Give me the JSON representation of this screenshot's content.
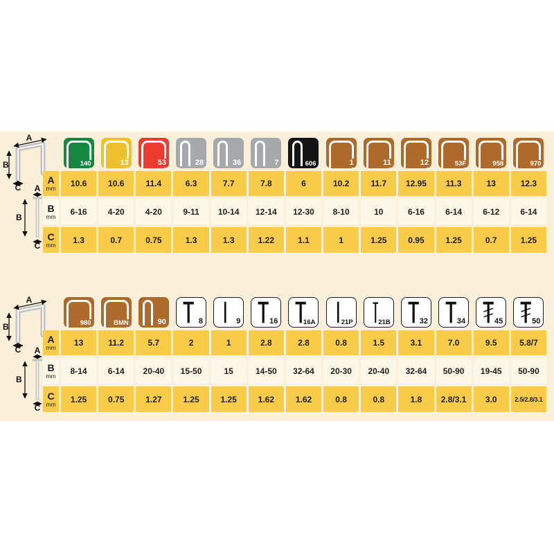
{
  "colors": {
    "band": "#faf0d9",
    "row_yellow": "#f8cc49",
    "row_cream": "#fdf7e7",
    "green": "#16873f",
    "gold": "#eec02d",
    "red": "#ee3b30",
    "gray": "#a6a9ab",
    "black": "#141414",
    "brown": "#ae6a2b",
    "text": "#1d1d1b"
  },
  "diagram_labels": {
    "width": "A",
    "length": "B",
    "thickness": "C"
  },
  "row_headers": [
    {
      "letter": "A",
      "unit": "mm"
    },
    {
      "letter": "B",
      "unit": "mm"
    },
    {
      "letter": "C",
      "unit": "mm"
    }
  ],
  "chart_data": [
    {
      "type": "table",
      "title": "Staple sizes (top table)",
      "columns": [
        {
          "label": "140",
          "icon": "staple-wide",
          "color_key": "green"
        },
        {
          "label": "13",
          "icon": "staple-wide",
          "color_key": "gold"
        },
        {
          "label": "53",
          "icon": "staple-wide",
          "color_key": "red"
        },
        {
          "label": "28",
          "icon": "staple-narrow",
          "color_key": "gray"
        },
        {
          "label": "36",
          "icon": "staple-narrow",
          "color_key": "gray"
        },
        {
          "label": "7",
          "icon": "staple-narrow",
          "color_key": "gray"
        },
        {
          "label": "606",
          "icon": "staple-narrow",
          "color_key": "black"
        },
        {
          "label": "1",
          "icon": "staple-wide",
          "color_key": "brown"
        },
        {
          "label": "11",
          "icon": "staple-wide",
          "color_key": "brown"
        },
        {
          "label": "12",
          "icon": "staple-wide",
          "color_key": "brown"
        },
        {
          "label": "53F",
          "icon": "staple-wide",
          "color_key": "brown"
        },
        {
          "label": "958",
          "icon": "staple-wide",
          "color_key": "brown"
        },
        {
          "label": "970",
          "icon": "staple-wide",
          "color_key": "brown"
        }
      ],
      "rows": [
        {
          "header": "A",
          "values": [
            "10.6",
            "10.6",
            "11.4",
            "6.3",
            "7.7",
            "7.8",
            "6",
            "10.2",
            "11.7",
            "12.95",
            "11.3",
            "13",
            "12.3"
          ]
        },
        {
          "header": "B",
          "values": [
            "6-16",
            "4-20",
            "4-20",
            "9-11",
            "10-14",
            "12-14",
            "12-30",
            "8-10",
            "10",
            "6-16",
            "6-14",
            "6-12",
            "6-14"
          ]
        },
        {
          "header": "C",
          "values": [
            "1.3",
            "0.7",
            "0.75",
            "1.3",
            "1.3",
            "1.22",
            "1.1",
            "1",
            "1.25",
            "0.95",
            "1.25",
            "0.7",
            "1.25"
          ]
        }
      ]
    },
    {
      "type": "table",
      "title": "Staple and nail sizes (bottom table)",
      "columns": [
        {
          "label": "980",
          "icon": "staple-wide",
          "color_key": "brown"
        },
        {
          "label": "BMN",
          "icon": "staple-wide",
          "color_key": "brown"
        },
        {
          "label": "90",
          "icon": "staple-narrow",
          "color_key": "brown"
        },
        {
          "label": "8",
          "icon": "nail",
          "color_key": "white"
        },
        {
          "label": "9",
          "icon": "pin",
          "color_key": "white"
        },
        {
          "label": "16",
          "icon": "nail",
          "color_key": "white"
        },
        {
          "label": "16A",
          "icon": "nail",
          "color_key": "white"
        },
        {
          "label": "21P",
          "icon": "pin",
          "color_key": "white"
        },
        {
          "label": "21B",
          "icon": "brad",
          "color_key": "white"
        },
        {
          "label": "32",
          "icon": "nail",
          "color_key": "white"
        },
        {
          "label": "34",
          "icon": "nail",
          "color_key": "white"
        },
        {
          "label": "45",
          "icon": "nail-serrated",
          "color_key": "white"
        },
        {
          "label": "50",
          "icon": "nail-serrated",
          "color_key": "white"
        }
      ],
      "rows": [
        {
          "header": "A",
          "values": [
            "13",
            "11.2",
            "5.7",
            "2",
            "1",
            "2.8",
            "2.8",
            "0.8",
            "1.5",
            "3.1",
            "7.0",
            "9.5",
            "5.8/7"
          ]
        },
        {
          "header": "B",
          "values": [
            "8-14",
            "6-14",
            "20-40",
            "15-50",
            "15",
            "14-50",
            "32-64",
            "20-30",
            "20-40",
            "32-64",
            "50-90",
            "19-45",
            "50-90"
          ]
        },
        {
          "header": "C",
          "values": [
            "1.25",
            "0.75",
            "1.27",
            "1.25",
            "1.25",
            "1.62",
            "1.62",
            "0.8",
            "0.8",
            "1.8",
            "2.8/3.1",
            "3.0",
            "2.5/2.8/3.1"
          ]
        }
      ]
    }
  ]
}
